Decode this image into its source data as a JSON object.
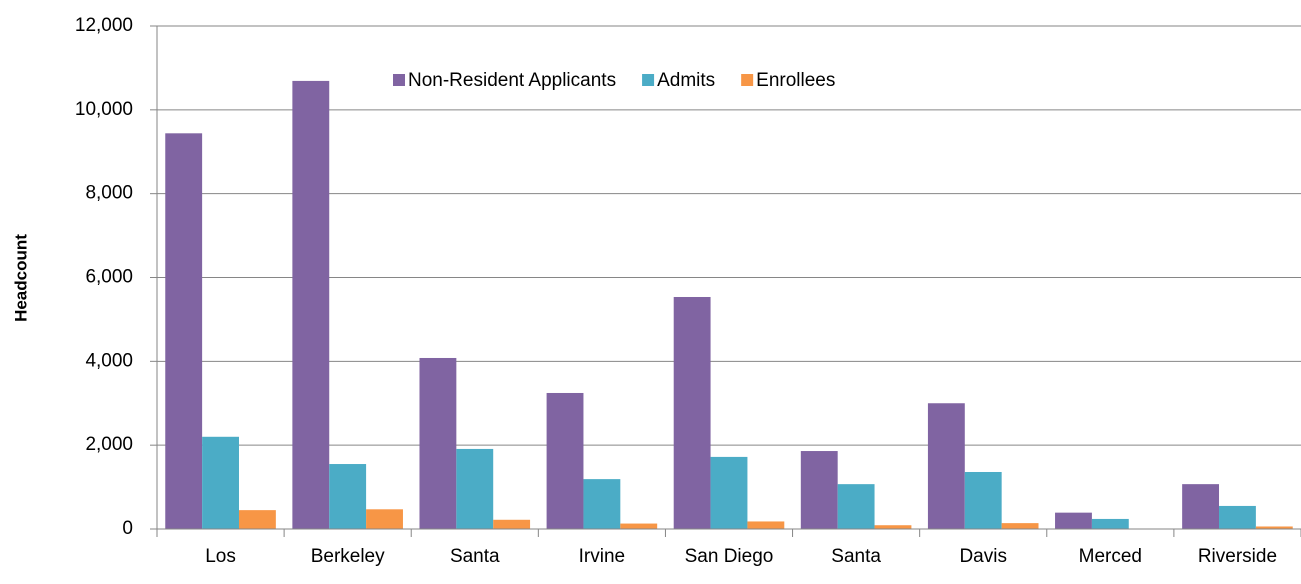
{
  "chart_data": {
    "type": "bar",
    "y_label": "Headcount",
    "categories": [
      "Los",
      "Berkeley",
      "Santa",
      "Irvine",
      "San Diego",
      "Santa",
      "Davis",
      "Merced",
      "Riverside"
    ],
    "series": [
      {
        "name": "Non-Resident Applicants",
        "color": "#8064a2",
        "values": [
          9440,
          10690,
          4080,
          3245,
          5535,
          1860,
          3000,
          390,
          1070
        ]
      },
      {
        "name": "Admits",
        "color": "#4bacc6",
        "values": [
          2200,
          1550,
          1910,
          1190,
          1720,
          1070,
          1360,
          240,
          550
        ]
      },
      {
        "name": "Enrollees",
        "color": "#f79646",
        "values": [
          450,
          470,
          220,
          130,
          180,
          90,
          140,
          0,
          60
        ]
      }
    ],
    "ylim": [
      0,
      12000
    ],
    "yticks": [
      0,
      {
        "value": 2000,
        "label": "2,000"
      },
      {
        "value": 4000,
        "label": "4,000"
      },
      {
        "value": 6000,
        "label": "6,000"
      },
      {
        "value": 8000,
        "label": "8,000"
      },
      {
        "value": 10000,
        "label": "10,000"
      },
      {
        "value": 12000,
        "label": "12,000"
      }
    ],
    "grid": true,
    "legend": "top"
  }
}
